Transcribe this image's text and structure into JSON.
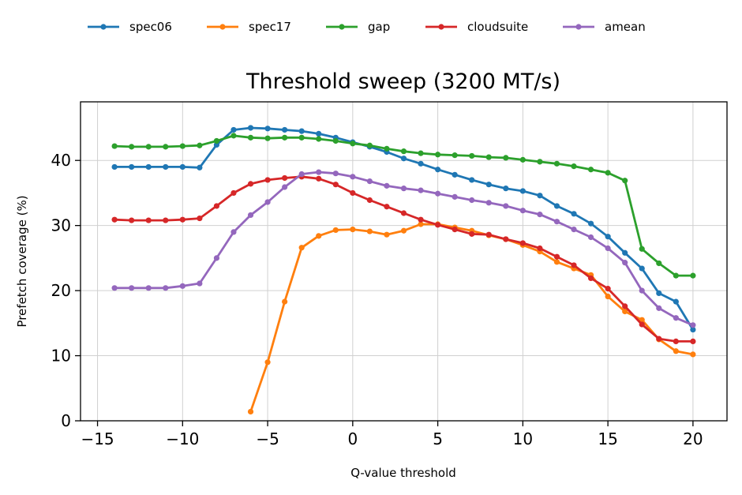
{
  "chart_data": {
    "type": "line",
    "title": "Threshold sweep (3200 MT/s)",
    "xlabel": "Q-value threshold",
    "ylabel": "Prefetch coverage (%)",
    "xlim": [
      -16,
      22
    ],
    "ylim": [
      0,
      49
    ],
    "x_ticks": [
      -15,
      -10,
      -5,
      0,
      5,
      10,
      15,
      20
    ],
    "y_ticks": [
      0,
      10,
      20,
      30,
      40
    ],
    "x_tick_labels": [
      "−15",
      "−10",
      "−5",
      "0",
      "5",
      "10",
      "15",
      "20"
    ],
    "y_tick_labels": [
      "0",
      "10",
      "20",
      "30",
      "40"
    ],
    "grid": true,
    "legend_position": "top",
    "series": [
      {
        "name": "spec06",
        "color": "#1f77b4",
        "x": [
          -14,
          -13,
          -12,
          -11,
          -10,
          -9,
          -8,
          -7,
          -6,
          -5,
          -4,
          -3,
          -2,
          -1,
          0,
          1,
          2,
          3,
          4,
          5,
          6,
          7,
          8,
          9,
          10,
          11,
          12,
          13,
          14,
          15,
          16,
          17,
          18,
          19,
          20
        ],
        "y": [
          39.0,
          39.0,
          39.0,
          39.0,
          39.0,
          38.9,
          42.4,
          44.7,
          45.0,
          44.9,
          44.7,
          44.5,
          44.1,
          43.5,
          42.8,
          42.1,
          41.3,
          40.3,
          39.5,
          38.6,
          37.8,
          37.0,
          36.3,
          35.7,
          35.3,
          34.6,
          33.0,
          31.8,
          30.3,
          28.3,
          25.8,
          23.4,
          19.6,
          18.3,
          14.0
        ]
      },
      {
        "name": "spec17",
        "color": "#ff7f0e",
        "x": [
          -6,
          -5,
          -4,
          -3,
          -2,
          -1,
          0,
          1,
          2,
          3,
          4,
          5,
          6,
          7,
          8,
          9,
          10,
          11,
          12,
          13,
          14,
          15,
          16,
          17,
          18,
          19,
          20
        ],
        "y": [
          1.4,
          9.0,
          18.3,
          26.6,
          28.4,
          29.3,
          29.4,
          29.1,
          28.6,
          29.2,
          30.2,
          30.2,
          29.7,
          29.2,
          28.5,
          27.9,
          27.0,
          26.0,
          24.4,
          23.4,
          22.4,
          19.1,
          16.8,
          15.5,
          12.5,
          10.7,
          10.2
        ]
      },
      {
        "name": "gap",
        "color": "#2ca02c",
        "x": [
          -14,
          -13,
          -12,
          -11,
          -10,
          -9,
          -8,
          -7,
          -6,
          -5,
          -4,
          -3,
          -2,
          -1,
          0,
          1,
          2,
          3,
          4,
          5,
          6,
          7,
          8,
          9,
          10,
          11,
          12,
          13,
          14,
          15,
          16,
          17,
          18,
          19,
          20
        ],
        "y": [
          42.2,
          42.1,
          42.1,
          42.1,
          42.2,
          42.3,
          43.0,
          43.8,
          43.5,
          43.4,
          43.5,
          43.5,
          43.3,
          43.0,
          42.6,
          42.3,
          41.8,
          41.4,
          41.1,
          40.9,
          40.8,
          40.7,
          40.5,
          40.4,
          40.1,
          39.8,
          39.5,
          39.1,
          38.6,
          38.1,
          36.9,
          26.4,
          24.2,
          22.3,
          22.3
        ]
      },
      {
        "name": "cloudsuite",
        "color": "#d62728",
        "x": [
          -14,
          -13,
          -12,
          -11,
          -10,
          -9,
          -8,
          -7,
          -6,
          -5,
          -4,
          -3,
          -2,
          -1,
          0,
          1,
          2,
          3,
          4,
          5,
          6,
          7,
          8,
          9,
          10,
          11,
          12,
          13,
          14,
          15,
          16,
          17,
          18,
          19,
          20
        ],
        "y": [
          30.9,
          30.8,
          30.8,
          30.8,
          30.9,
          31.1,
          33.0,
          35.0,
          36.4,
          37.0,
          37.3,
          37.5,
          37.2,
          36.3,
          35.0,
          33.9,
          32.9,
          31.9,
          30.9,
          30.1,
          29.4,
          28.7,
          28.6,
          27.9,
          27.3,
          26.5,
          25.2,
          23.9,
          21.9,
          20.3,
          17.6,
          14.8,
          12.6,
          12.2,
          12.2
        ]
      },
      {
        "name": "amean",
        "color": "#9467bd",
        "x": [
          -14,
          -13,
          -12,
          -11,
          -10,
          -9,
          -8,
          -7,
          -6,
          -5,
          -4,
          -3,
          -2,
          -1,
          0,
          1,
          2,
          3,
          4,
          5,
          6,
          7,
          8,
          9,
          10,
          11,
          12,
          13,
          14,
          15,
          16,
          17,
          18,
          19,
          20
        ],
        "y": [
          20.4,
          20.4,
          20.4,
          20.4,
          20.7,
          21.1,
          25.0,
          29.0,
          31.6,
          33.6,
          35.9,
          37.9,
          38.2,
          38.0,
          37.5,
          36.8,
          36.1,
          35.7,
          35.4,
          34.9,
          34.4,
          33.9,
          33.5,
          33.0,
          32.3,
          31.7,
          30.6,
          29.4,
          28.2,
          26.5,
          24.3,
          20.0,
          17.3,
          15.8,
          14.7
        ]
      }
    ]
  }
}
